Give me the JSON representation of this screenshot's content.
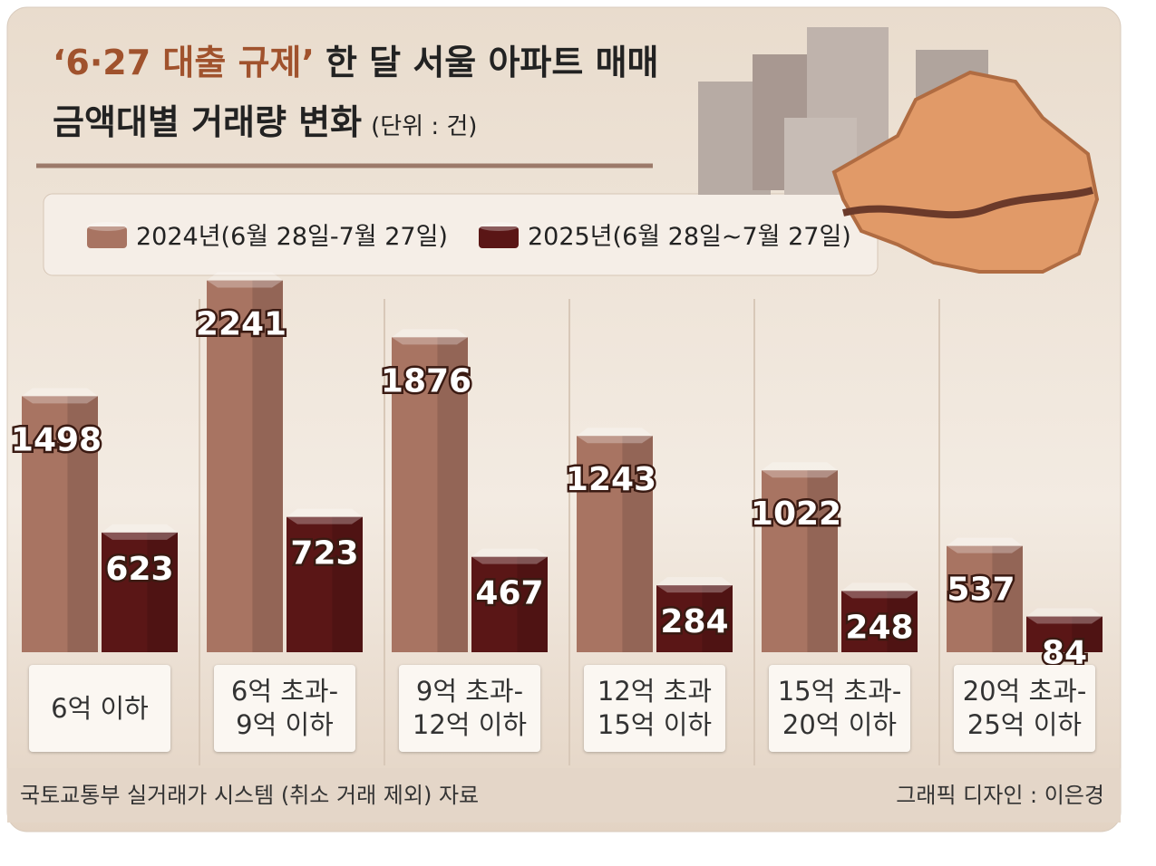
{
  "chart_data": {
    "type": "bar",
    "title_highlight": "‘6·27 대출 규제’",
    "title": "한 달 서울 아파트 매매",
    "subtitle": "금액대별 거래량 변화",
    "unit": "(단위 : 건)",
    "categories": [
      "6억 이하",
      "6억 초과-\n9억 이하",
      "9억 초과-\n12억 이하",
      "12억 초과\n15억 이하",
      "15억 초과-\n20억 이하",
      "20억 초과-\n25억 이하"
    ],
    "series": [
      {
        "name": "2024년(6월 28일-7월 27일)",
        "color": "#a87462",
        "values": [
          1498,
          2241,
          1876,
          1243,
          1022,
          537
        ]
      },
      {
        "name": "2025년(6월 28일~7월 27일)",
        "color": "#5a1616",
        "values": [
          623,
          723,
          467,
          284,
          248,
          84
        ]
      }
    ],
    "source": "국토교통부 실거래가 시스템 (취소 거래 제외) 자료",
    "credit": "그래픽 디자인 : 이은경"
  }
}
